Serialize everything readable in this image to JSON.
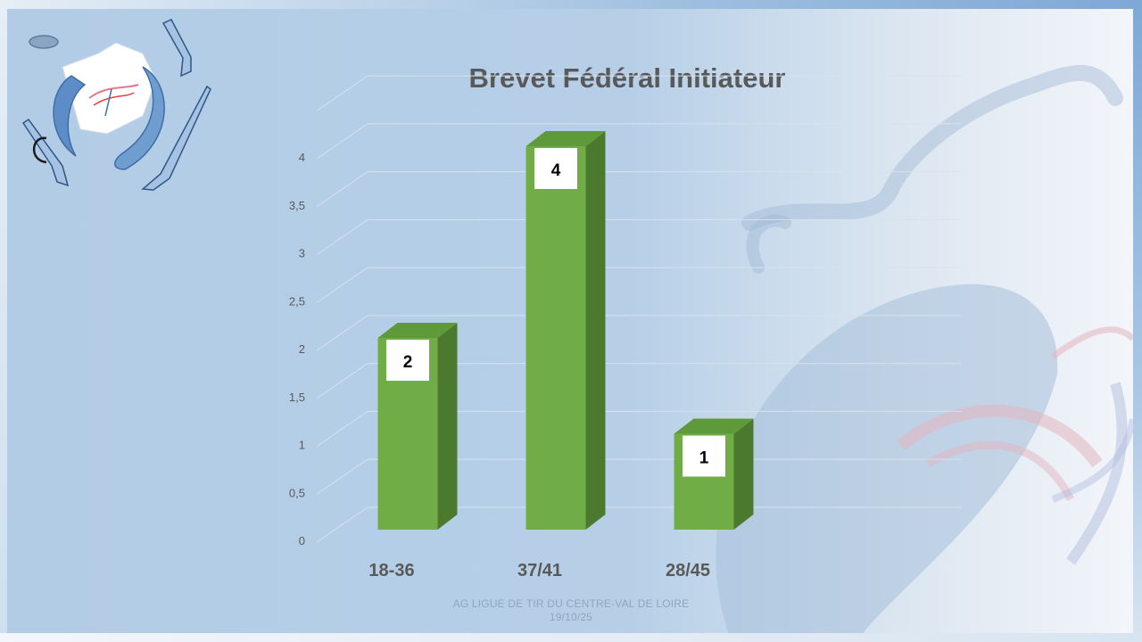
{
  "slide": {
    "footer_org": "AG LIGUE DE TIR DU CENTRE-VAL DE LOIRE",
    "footer_date": "19/10/25",
    "colors": {
      "bar_front": "#70ad47",
      "bar_side": "#4b7a2e",
      "bar_top": "#5f9a3a",
      "gridline": "#d6e2ee",
      "tick_text": "#595959",
      "title_text": "#595959",
      "data_label_bg": "#ffffff"
    },
    "icons": [
      "shooting-federation-logo-icon",
      "france-map-icon",
      "clay-target-icon",
      "shotgun-icon",
      "pistol-icon",
      "rifle-icon"
    ]
  },
  "chart_data": {
    "type": "bar",
    "style": "3d-column",
    "title": "Brevet Fédéral Initiateur",
    "categories": [
      "18-36",
      "37/41",
      "28/45"
    ],
    "values": [
      2,
      4,
      1
    ],
    "data_labels": [
      "2",
      "4",
      "1"
    ],
    "y_ticks": [
      "0",
      "0,5",
      "1",
      "1,5",
      "2",
      "2,5",
      "3",
      "3,5",
      "4"
    ],
    "ylim": [
      0,
      4.5
    ],
    "grid": true,
    "legend": "none"
  }
}
